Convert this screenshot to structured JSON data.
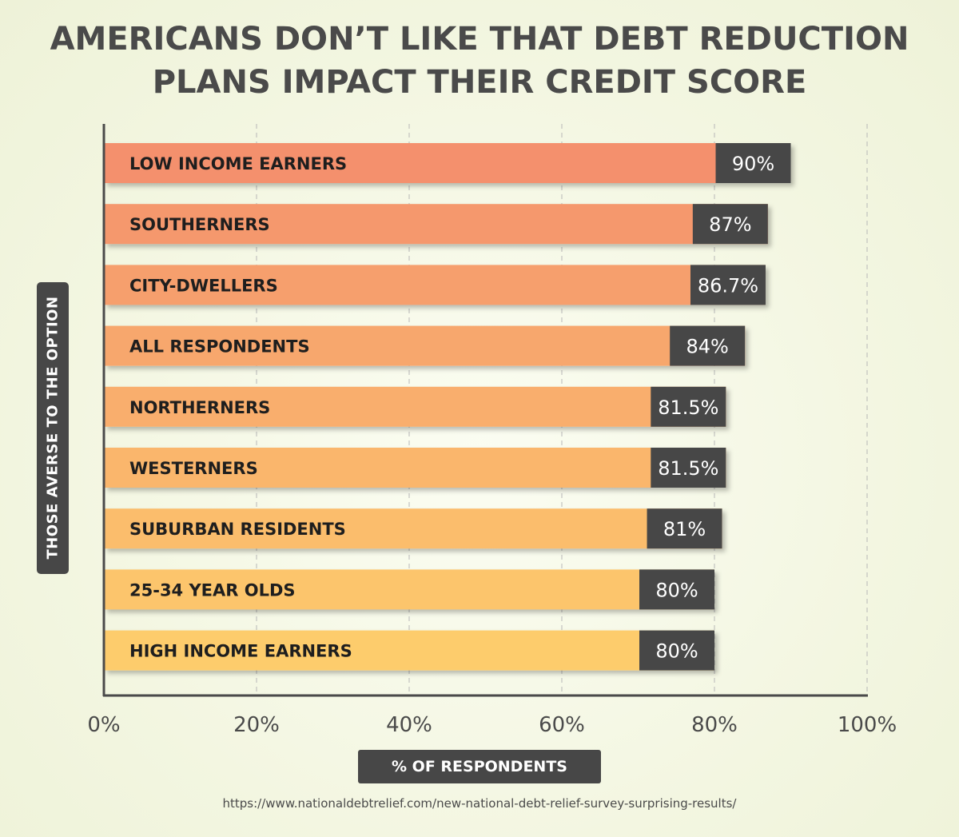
{
  "title_lines": [
    "AMERICANS DON’T LIKE THAT DEBT REDUCTION",
    "PLANS IMPACT THEIR CREDIT SCORE"
  ],
  "source": "https://www.nationaldebtrelief.com/new-national-debt-relief-survey-surprising-results/",
  "colors": {
    "bar_gradient_top": "#f4906d",
    "bar_gradient_bottom": "#fdcc6c",
    "value_box": "#474747",
    "axis": "#4a4a4a",
    "grid": "#b7b7b7"
  },
  "chart_data": {
    "type": "bar",
    "orientation": "horizontal",
    "title": "AMERICANS DON’T LIKE THAT DEBT REDUCTION PLANS IMPACT THEIR CREDIT SCORE",
    "xlabel": "% OF RESPONDENTS",
    "ylabel": "THOSE AVERSE TO THE OPTION",
    "xlim": [
      0,
      100
    ],
    "x_ticks": [
      "0%",
      "20%",
      "40%",
      "60%",
      "80%",
      "100%"
    ],
    "x_tick_values": [
      0,
      20,
      40,
      60,
      80,
      100
    ],
    "grid": "vertical dashed",
    "categories": [
      "LOW INCOME EARNERS",
      "SOUTHERNERS",
      "CITY-DWELLERS",
      "ALL RESPONDENTS",
      "NORTHERNERS",
      "WESTERNERS",
      "SUBURBAN RESIDENTS",
      "25-34 YEAR OLDS",
      "HIGH INCOME EARNERS"
    ],
    "values": [
      90,
      87,
      86.7,
      84,
      81.5,
      81.5,
      81,
      80,
      80
    ],
    "value_labels": [
      "90%",
      "87%",
      "86.7%",
      "84%",
      "81.5%",
      "81.5%",
      "81%",
      "80%",
      "80%"
    ]
  }
}
